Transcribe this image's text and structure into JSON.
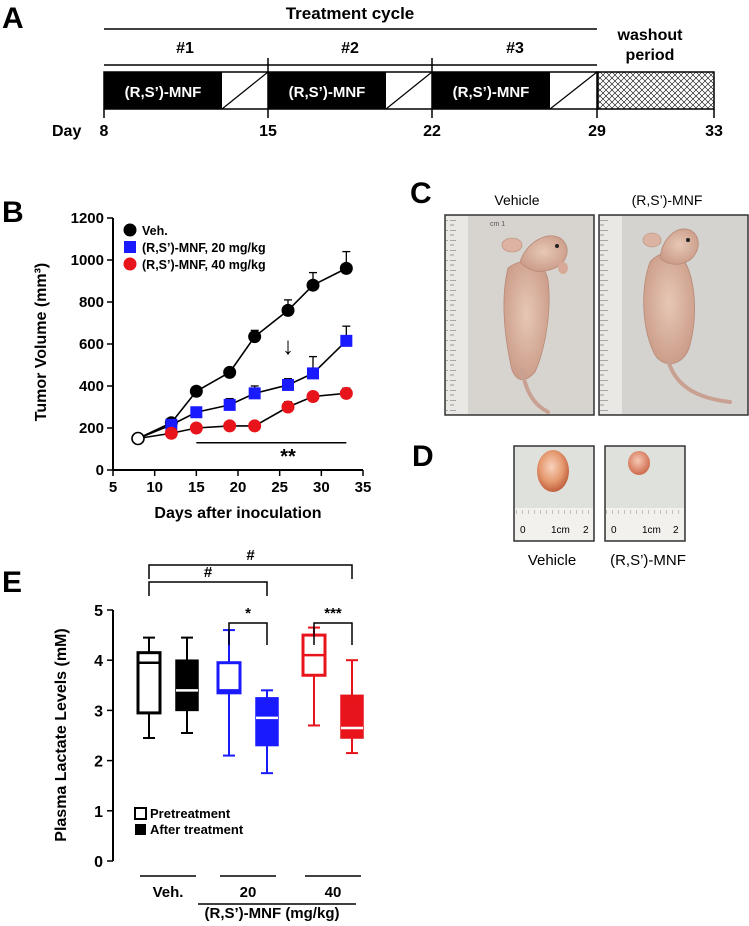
{
  "panels": {
    "A": "A",
    "B": "B",
    "C": "C",
    "D": "D",
    "E": "E"
  },
  "schedule": {
    "title": "Treatment cycle",
    "cycles": [
      "#1",
      "#2",
      "#3"
    ],
    "drug_label": "(R,S’)-MNF",
    "washout_label_1": "washout",
    "washout_label_2": "period",
    "day_label": "Day",
    "days": [
      "8",
      "15",
      "22",
      "29",
      "33"
    ]
  },
  "chart_data": [
    {
      "type": "line",
      "ylabel": "Tumor Volume (mm³)",
      "xlabel": "Days after inoculation",
      "xlim": [
        5,
        35
      ],
      "ylim": [
        0,
        1200
      ],
      "xticks": [
        5,
        10,
        15,
        20,
        25,
        30,
        35
      ],
      "yticks": [
        0,
        200,
        400,
        600,
        800,
        1000,
        1200
      ],
      "grid": false,
      "legend_position": "top-left",
      "series": [
        {
          "name": "Veh.",
          "color": "#000000",
          "marker": "circle",
          "x": [
            8,
            12,
            15,
            19,
            22,
            26,
            29,
            33
          ],
          "y": [
            150,
            225,
            375,
            465,
            635,
            760,
            880,
            960
          ],
          "err": [
            0,
            20,
            20,
            20,
            30,
            50,
            60,
            80
          ]
        },
        {
          "name": "(R,S’)-MNF, 20 mg/kg",
          "color": "#1a1aff",
          "marker": "square",
          "x": [
            8,
            12,
            15,
            19,
            22,
            26,
            29,
            33
          ],
          "y": [
            150,
            215,
            275,
            310,
            365,
            405,
            460,
            615
          ],
          "err": [
            0,
            20,
            20,
            30,
            35,
            30,
            80,
            70
          ]
        },
        {
          "name": "(R,S’)-MNF, 40 mg/kg",
          "color": "#e8141b",
          "marker": "circle",
          "x": [
            8,
            12,
            15,
            19,
            22,
            26,
            29,
            33
          ],
          "y": [
            150,
            175,
            200,
            210,
            210,
            300,
            350,
            365
          ],
          "err": [
            0,
            12,
            12,
            12,
            12,
            25,
            20,
            25
          ]
        }
      ],
      "annotations": [
        {
          "text": "**",
          "x": 26,
          "y": 80
        },
        {
          "text": "↓",
          "x": 26,
          "y": 590
        }
      ],
      "significance_bar": {
        "x": [
          15,
          33
        ],
        "y": 130
      }
    },
    {
      "type": "box",
      "ylabel": "Plasma Lactate Levels (mM)",
      "xlabel": "(R,S’)-MNF (mg/kg)",
      "ylim": [
        0,
        5
      ],
      "yticks": [
        0,
        1,
        2,
        3,
        4,
        5
      ],
      "groups": [
        "Veh.",
        "20",
        "40"
      ],
      "legend": [
        "Pretreatment",
        "After treatment"
      ],
      "legend_position": "bottom-left",
      "boxes": [
        {
          "group": "Veh.",
          "condition": "Pretreatment",
          "color": "#000000",
          "filled": false,
          "min": 2.45,
          "q1": 2.95,
          "median": 3.95,
          "q3": 4.15,
          "max": 4.45
        },
        {
          "group": "Veh.",
          "condition": "After treatment",
          "color": "#000000",
          "filled": true,
          "min": 2.55,
          "q1": 3.0,
          "median": 3.4,
          "q3": 4.0,
          "max": 4.45
        },
        {
          "group": "20",
          "condition": "Pretreatment",
          "color": "#1a1aff",
          "filled": false,
          "min": 2.1,
          "q1": 3.35,
          "median": 3.4,
          "q3": 3.95,
          "max": 4.6
        },
        {
          "group": "20",
          "condition": "After treatment",
          "color": "#1a1aff",
          "filled": true,
          "min": 1.75,
          "q1": 2.3,
          "median": 2.85,
          "q3": 3.25,
          "max": 3.4
        },
        {
          "group": "40",
          "condition": "Pretreatment",
          "color": "#e8141b",
          "filled": false,
          "min": 2.7,
          "q1": 3.7,
          "median": 4.1,
          "q3": 4.5,
          "max": 4.65
        },
        {
          "group": "40",
          "condition": "After treatment",
          "color": "#e8141b",
          "filled": true,
          "min": 2.15,
          "q1": 2.45,
          "median": 2.65,
          "q3": 3.3,
          "max": 4.0
        }
      ],
      "significance": [
        {
          "label": "*",
          "from": 2,
          "to": 3
        },
        {
          "label": "***",
          "from": 4,
          "to": 5
        },
        {
          "label": "#",
          "from": 0,
          "to": 3
        },
        {
          "label": "#",
          "from": 0,
          "to": 5
        }
      ]
    }
  ],
  "photos": {
    "c_vehicle": "Vehicle",
    "c_treated": "(R,S’)-MNF",
    "d_vehicle": "Vehicle",
    "d_treated": "(R,S’)-MNF",
    "ruler_0": "0",
    "ruler_1": "1cm",
    "ruler_2": "2",
    "ruler_mark": "cm 1"
  }
}
